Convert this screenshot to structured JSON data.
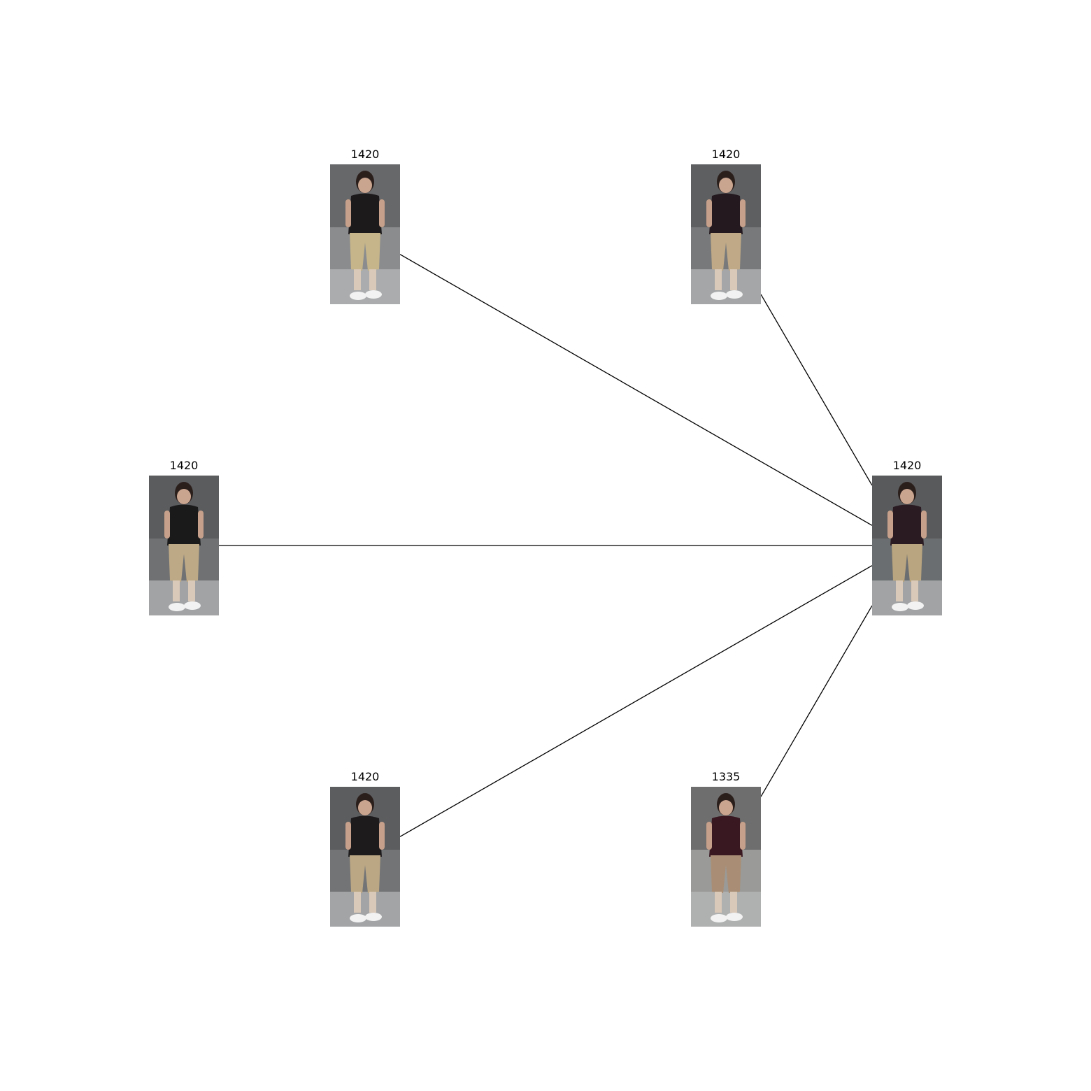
{
  "nodes": [
    {
      "id": "query",
      "label": "1420",
      "role": "query",
      "shirt": "#2a1a22",
      "pants": "#b9a57f",
      "bg": "#6b6e70"
    },
    {
      "id": "n1",
      "label": "1420",
      "shirt": "#1d1a1c",
      "pants": "#c6b58a",
      "bg": "#8a8c8e"
    },
    {
      "id": "n2",
      "label": "1420",
      "shirt": "#23191e",
      "pants": "#bfa986",
      "bg": "#77797b"
    },
    {
      "id": "n3",
      "label": "1420",
      "shirt": "#1b1a1b",
      "pants": "#bda986",
      "bg": "#6f7173"
    },
    {
      "id": "n4",
      "label": "1420",
      "shirt": "#1e1b1d",
      "pants": "#bba784",
      "bg": "#727476"
    },
    {
      "id": "n5",
      "label": "1335",
      "shirt": "#3a1822",
      "pants": "#a98e75",
      "bg": "#9a9a98"
    }
  ],
  "edges": [
    [
      "query",
      "n1"
    ],
    [
      "query",
      "n2"
    ],
    [
      "query",
      "n3"
    ],
    [
      "query",
      "n4"
    ],
    [
      "query",
      "n5"
    ]
  ]
}
